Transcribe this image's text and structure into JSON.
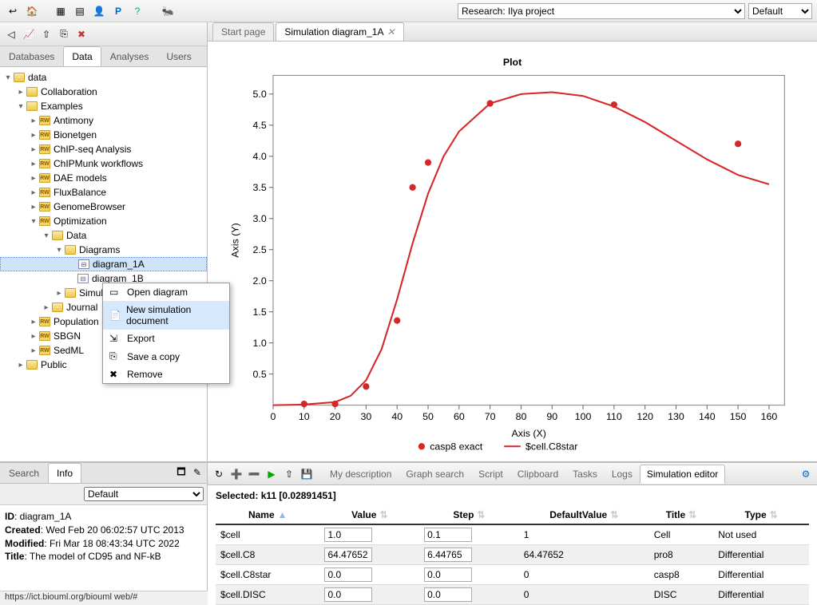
{
  "top": {
    "project_selector": "Research: Ilya project",
    "perspective_selector": "Default"
  },
  "left": {
    "tabs": [
      "Databases",
      "Data",
      "Analyses",
      "Users"
    ],
    "active_tab": 1,
    "tree": [
      {
        "depth": 0,
        "toggle": "▾",
        "icon": "folder",
        "label": "data"
      },
      {
        "depth": 1,
        "toggle": "▸",
        "icon": "folder",
        "label": "Collaboration"
      },
      {
        "depth": 1,
        "toggle": "▾",
        "icon": "folder",
        "label": "Examples"
      },
      {
        "depth": 2,
        "toggle": "▸",
        "icon": "rw",
        "label": "Antimony"
      },
      {
        "depth": 2,
        "toggle": "▸",
        "icon": "rw",
        "label": "Bionetgen"
      },
      {
        "depth": 2,
        "toggle": "▸",
        "icon": "rw",
        "label": "ChIP-seq Analysis"
      },
      {
        "depth": 2,
        "toggle": "▸",
        "icon": "rw",
        "label": "ChIPMunk workflows"
      },
      {
        "depth": 2,
        "toggle": "▸",
        "icon": "rw",
        "label": "DAE models"
      },
      {
        "depth": 2,
        "toggle": "▸",
        "icon": "rw",
        "label": "FluxBalance"
      },
      {
        "depth": 2,
        "toggle": "▸",
        "icon": "rw",
        "label": "GenomeBrowser"
      },
      {
        "depth": 2,
        "toggle": "▾",
        "icon": "rw",
        "label": "Optimization"
      },
      {
        "depth": 3,
        "toggle": "▾",
        "icon": "folder",
        "label": "Data"
      },
      {
        "depth": 4,
        "toggle": "▾",
        "icon": "folder",
        "label": "Diagrams"
      },
      {
        "depth": 5,
        "toggle": "",
        "icon": "diag",
        "label": "diagram_1A",
        "selected": true
      },
      {
        "depth": 5,
        "toggle": "",
        "icon": "diag",
        "label": "diagram_1B"
      },
      {
        "depth": 4,
        "toggle": "▸",
        "icon": "folder",
        "label": "Simulations"
      },
      {
        "depth": 3,
        "toggle": "▸",
        "icon": "folder",
        "label": "Journal"
      },
      {
        "depth": 2,
        "toggle": "▸",
        "icon": "rw",
        "label": "Population Models"
      },
      {
        "depth": 2,
        "toggle": "▸",
        "icon": "rw",
        "label": "SBGN"
      },
      {
        "depth": 2,
        "toggle": "▸",
        "icon": "rw",
        "label": "SedML"
      },
      {
        "depth": 1,
        "toggle": "▸",
        "icon": "folder",
        "label": "Public"
      }
    ]
  },
  "context_menu": {
    "items": [
      {
        "icon": "open",
        "label": "Open diagram"
      },
      {
        "icon": "new",
        "label": "New simulation document",
        "hover": true
      },
      {
        "icon": "export",
        "label": "Export"
      },
      {
        "icon": "copy",
        "label": "Save a copy"
      },
      {
        "icon": "remove",
        "label": "Remove"
      }
    ]
  },
  "docs": {
    "tabs": [
      {
        "label": "Start page",
        "active": false
      },
      {
        "label": "Simulation diagram_1A",
        "active": true,
        "closable": true
      }
    ]
  },
  "plot": {
    "title": "Plot",
    "xlabel": "Axis (X)",
    "ylabel": "Axis (Y)",
    "xlim": [
      0,
      165
    ],
    "ylim": [
      0,
      5.3
    ],
    "xticks": [
      0,
      10,
      20,
      30,
      40,
      50,
      60,
      70,
      80,
      90,
      100,
      110,
      120,
      130,
      140,
      150,
      160
    ],
    "yticks": [
      0.5,
      1.0,
      1.5,
      2.0,
      2.5,
      3.0,
      3.5,
      4.0,
      4.5,
      5.0
    ],
    "background": "#ffffff",
    "border_color": "#888888",
    "line_color": "#d62728",
    "point_color": "#d62728",
    "line_width": 2,
    "point_radius": 4,
    "legend": [
      {
        "type": "point",
        "color": "#d62728",
        "label": "casp8 exact"
      },
      {
        "type": "line",
        "color": "#d62728",
        "label": "$cell.C8star"
      }
    ],
    "points": [
      {
        "x": 10,
        "y": 0.02
      },
      {
        "x": 20,
        "y": 0.02
      },
      {
        "x": 30,
        "y": 0.3
      },
      {
        "x": 40,
        "y": 1.36
      },
      {
        "x": 45,
        "y": 3.5
      },
      {
        "x": 50,
        "y": 3.9
      },
      {
        "x": 70,
        "y": 4.85
      },
      {
        "x": 110,
        "y": 4.83
      },
      {
        "x": 150,
        "y": 4.2
      }
    ],
    "curve": [
      {
        "x": 0,
        "y": 0.0
      },
      {
        "x": 10,
        "y": 0.01
      },
      {
        "x": 20,
        "y": 0.05
      },
      {
        "x": 25,
        "y": 0.15
      },
      {
        "x": 30,
        "y": 0.4
      },
      {
        "x": 35,
        "y": 0.9
      },
      {
        "x": 40,
        "y": 1.7
      },
      {
        "x": 45,
        "y": 2.6
      },
      {
        "x": 50,
        "y": 3.4
      },
      {
        "x": 55,
        "y": 4.0
      },
      {
        "x": 60,
        "y": 4.4
      },
      {
        "x": 70,
        "y": 4.85
      },
      {
        "x": 80,
        "y": 5.0
      },
      {
        "x": 90,
        "y": 5.03
      },
      {
        "x": 100,
        "y": 4.97
      },
      {
        "x": 110,
        "y": 4.8
      },
      {
        "x": 120,
        "y": 4.55
      },
      {
        "x": 130,
        "y": 4.25
      },
      {
        "x": 140,
        "y": 3.95
      },
      {
        "x": 150,
        "y": 3.7
      },
      {
        "x": 160,
        "y": 3.55
      }
    ]
  },
  "info_panel": {
    "tabs": [
      "Search",
      "Info"
    ],
    "active_tab": 1,
    "selector": "Default",
    "id_label": "ID",
    "id_value": "diagram_1A",
    "created_label": "Created",
    "created_value": "Wed Feb 20 06:02:57 UTC 2013",
    "modified_label": "Modified",
    "modified_value": "Fri Mar 18 08:43:34 UTC 2022",
    "title_label": "Title",
    "title_value": "The model of CD95 and NF-kB"
  },
  "bottom_right": {
    "tabs": [
      "My description",
      "Graph search",
      "Script",
      "Clipboard",
      "Tasks",
      "Logs",
      "Simulation editor"
    ],
    "active_tab": 6,
    "selected_label": "Selected:",
    "selected_value": "k11 [0.02891451]",
    "columns": [
      "Name",
      "Value",
      "Step",
      "DefaultValue",
      "Title",
      "Type"
    ],
    "rows": [
      {
        "name": "$cell",
        "value": "1.0",
        "step": "0.1",
        "default": "1",
        "title": "Cell",
        "type": "Not used"
      },
      {
        "name": "$cell.C8",
        "value": "64.47652",
        "step": "6.44765",
        "default": "64.47652",
        "title": "pro8",
        "type": "Differential"
      },
      {
        "name": "$cell.C8star",
        "value": "0.0",
        "step": "0.0",
        "default": "0",
        "title": "casp8",
        "type": "Differential"
      },
      {
        "name": "$cell.DISC",
        "value": "0.0",
        "step": "0.0",
        "default": "0",
        "title": "DISC",
        "type": "Differential"
      }
    ]
  },
  "status_url": "https://ict.biouml.org/biouml web/#"
}
